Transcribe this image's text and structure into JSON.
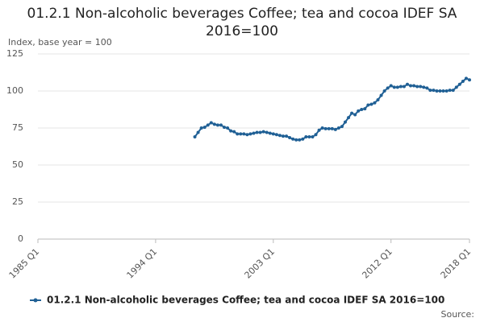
{
  "chart_data": {
    "type": "line",
    "title": "01.2.1 Non-alcoholic beverages Coffee; tea and cocoa IDEF SA 2016=100",
    "y_label": "Index, base year = 100",
    "source": "Source:",
    "categories": [
      "1985 Q1",
      null,
      null,
      null,
      null,
      null,
      null,
      null,
      null,
      null,
      null,
      null,
      null,
      null,
      null,
      null,
      null,
      null,
      null,
      null,
      null,
      null,
      null,
      null,
      null,
      null,
      null,
      null,
      null,
      null,
      null,
      null,
      null,
      null,
      null,
      null,
      "1994 Q1",
      null,
      null,
      null,
      null,
      null,
      null,
      null,
      null,
      null,
      null,
      null,
      null,
      null,
      null,
      null,
      null,
      null,
      null,
      null,
      null,
      null,
      null,
      null,
      null,
      null,
      null,
      null,
      null,
      null,
      null,
      null,
      null,
      null,
      null,
      null,
      "2003 Q1",
      null,
      null,
      null,
      null,
      null,
      null,
      null,
      null,
      null,
      null,
      null,
      null,
      null,
      null,
      null,
      null,
      null,
      null,
      null,
      null,
      null,
      null,
      null,
      null,
      null,
      null,
      null,
      null,
      null,
      null,
      null,
      null,
      null,
      null,
      null,
      "2012 Q1",
      null,
      null,
      null,
      null,
      null,
      null,
      null,
      null,
      null,
      null,
      null,
      null,
      null,
      null,
      null,
      null,
      null,
      null,
      null,
      null,
      null,
      null,
      null,
      "2018 Q1"
    ],
    "series": [
      {
        "name": "01.2.1 Non-alcoholic beverages Coffee; tea and cocoa IDEF SA 2016=100",
        "color": "#206095",
        "values": [
          null,
          null,
          null,
          null,
          null,
          null,
          null,
          null,
          null,
          null,
          null,
          null,
          null,
          null,
          null,
          null,
          null,
          null,
          null,
          null,
          null,
          null,
          null,
          null,
          null,
          null,
          null,
          null,
          null,
          null,
          null,
          null,
          null,
          null,
          null,
          null,
          null,
          null,
          null,
          null,
          null,
          null,
          null,
          null,
          null,
          null,
          null,
          null,
          69,
          72,
          75,
          75.5,
          77,
          78.5,
          77.5,
          77,
          77,
          75.5,
          75,
          73,
          72.5,
          71,
          71,
          71,
          70.5,
          71,
          71.5,
          72,
          72,
          72.5,
          72,
          71.5,
          71,
          70.5,
          70,
          69.5,
          69.5,
          68.5,
          67.5,
          67,
          67,
          67.5,
          69,
          69,
          69,
          70.5,
          73.5,
          75,
          74.5,
          74.5,
          74.5,
          74,
          75,
          76,
          79,
          82,
          85,
          84,
          86.5,
          87.5,
          88,
          90.5,
          91,
          92,
          94,
          97,
          100,
          102,
          103.5,
          102.5,
          102.5,
          103,
          103,
          104.5,
          103.5,
          103.5,
          103,
          103,
          102.5,
          102,
          100.5,
          100.5,
          100,
          100,
          100,
          100,
          100.5,
          100.5,
          102.5,
          104.5,
          106.5,
          108.5,
          107.5
        ]
      }
    ],
    "ylim": [
      0,
      125
    ],
    "yticks": [
      0,
      25,
      50,
      75,
      100,
      125
    ],
    "grid": true
  }
}
